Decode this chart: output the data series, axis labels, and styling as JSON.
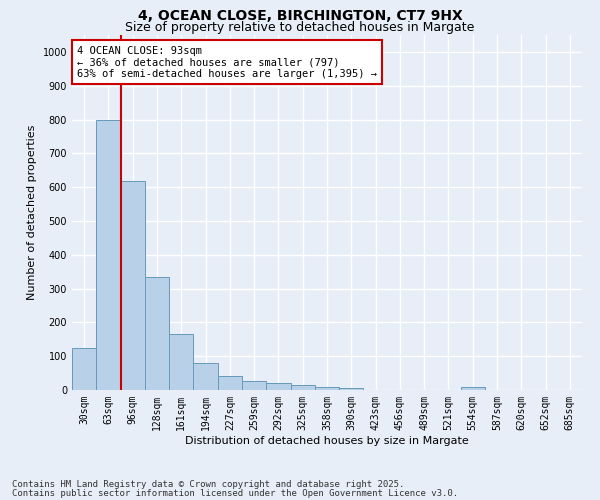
{
  "title_line1": "4, OCEAN CLOSE, BIRCHINGTON, CT7 9HX",
  "title_line2": "Size of property relative to detached houses in Margate",
  "xlabel": "Distribution of detached houses by size in Margate",
  "ylabel": "Number of detached properties",
  "categories": [
    "30sqm",
    "63sqm",
    "96sqm",
    "128sqm",
    "161sqm",
    "194sqm",
    "227sqm",
    "259sqm",
    "292sqm",
    "325sqm",
    "358sqm",
    "390sqm",
    "423sqm",
    "456sqm",
    "489sqm",
    "521sqm",
    "554sqm",
    "587sqm",
    "620sqm",
    "652sqm",
    "685sqm"
  ],
  "values": [
    123,
    800,
    617,
    335,
    165,
    80,
    40,
    27,
    22,
    15,
    10,
    6,
    0,
    0,
    0,
    0,
    8,
    0,
    0,
    0,
    0
  ],
  "bar_color": "#b8d0e8",
  "bar_edge_color": "#6699bb",
  "background_color": "#e8eef8",
  "grid_color": "#ffffff",
  "annotation_line1": "4 OCEAN CLOSE: 93sqm",
  "annotation_line2": "← 36% of detached houses are smaller (797)",
  "annotation_line3": "63% of semi-detached houses are larger (1,395) →",
  "annotation_box_color": "#ffffff",
  "annotation_box_edge": "#cc0000",
  "vline_color": "#cc0000",
  "vline_position": 1.5,
  "ylim": [
    0,
    1050
  ],
  "yticks": [
    0,
    100,
    200,
    300,
    400,
    500,
    600,
    700,
    800,
    900,
    1000
  ],
  "footer_line1": "Contains HM Land Registry data © Crown copyright and database right 2025.",
  "footer_line2": "Contains public sector information licensed under the Open Government Licence v3.0.",
  "title_fontsize": 10,
  "subtitle_fontsize": 9,
  "axis_label_fontsize": 8,
  "tick_fontsize": 7,
  "annotation_fontsize": 7.5,
  "footer_fontsize": 6.5
}
